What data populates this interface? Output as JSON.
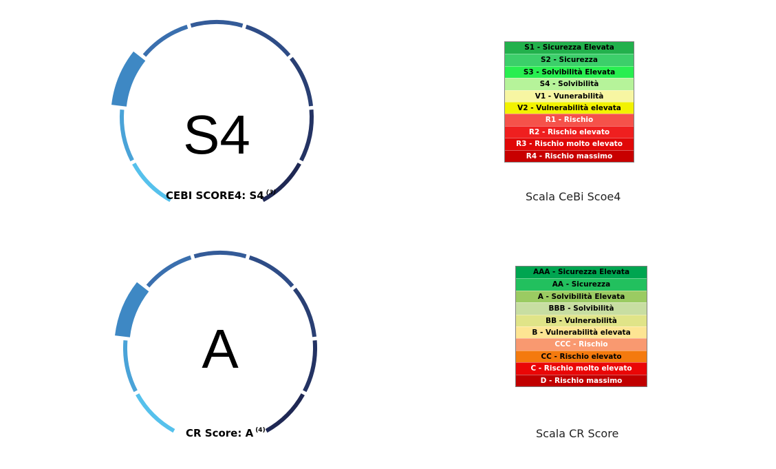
{
  "cebi": {
    "letter": "S4",
    "caption_text": "CEBI SCORE4: S4",
    "caption_note": "(3)",
    "active_segment": 2
  },
  "cr": {
    "letter": "A",
    "caption_text": "CR Score: A",
    "caption_note": "(4)",
    "active_segment": 2
  },
  "cebi_scale": {
    "title": "Scala CeBi Scoe4",
    "rows": [
      {
        "label": "S1 - Sicurezza Elevata",
        "bg": "#22b14c",
        "fg": "#000000"
      },
      {
        "label": "S2 - Sicurezza",
        "bg": "#3ccf6a",
        "fg": "#000000"
      },
      {
        "label": "S3 - Solvibilità Elevata",
        "bg": "#28ee50",
        "fg": "#000000"
      },
      {
        "label": "S4 - Solvibilità",
        "bg": "#b6f39a",
        "fg": "#000000"
      },
      {
        "label": "V1 - Vunerabilità",
        "bg": "#f7f6a2",
        "fg": "#000000"
      },
      {
        "label": "V2 - Vulnerabilità elevata",
        "bg": "#f2f200",
        "fg": "#000000"
      },
      {
        "label": "R1 - Rischio",
        "bg": "#f5524a",
        "fg": "#ffffff"
      },
      {
        "label": "R2 - Rischio elevato",
        "bg": "#ef1f1f",
        "fg": "#ffffff"
      },
      {
        "label": "R3 - Rischio molto elevato",
        "bg": "#e00808",
        "fg": "#ffffff"
      },
      {
        "label": "R4 - Rischio massimo",
        "bg": "#c80000",
        "fg": "#ffffff"
      }
    ]
  },
  "cr_scale": {
    "title": "Scala CR Score",
    "rows": [
      {
        "label": "AAA - Sicurezza Elevata",
        "bg": "#00a550",
        "fg": "#000000"
      },
      {
        "label": "AA - Sicurezza",
        "bg": "#22c05e",
        "fg": "#000000"
      },
      {
        "label": "A - Solvibilità Elevata",
        "bg": "#9bcb62",
        "fg": "#000000"
      },
      {
        "label": "BBB - Solvibilità",
        "bg": "#c8dea2",
        "fg": "#000000"
      },
      {
        "label": "BB - Vulnerabilità",
        "bg": "#e0e488",
        "fg": "#000000"
      },
      {
        "label": "B - Vulnerabilità elevata",
        "bg": "#fde593",
        "fg": "#000000"
      },
      {
        "label": "CCC - Rischio",
        "bg": "#f99970",
        "fg": "#ffffff"
      },
      {
        "label": "CC - Rischio elevato",
        "bg": "#f47a0e",
        "fg": "#000000"
      },
      {
        "label": "C - Rischio molto elevato",
        "bg": "#ea0606",
        "fg": "#ffffff"
      },
      {
        "label": "D - Rischio massimo",
        "bg": "#c00000",
        "fg": "#ffffff"
      }
    ]
  },
  "gauge_colors": [
    "#56c1ec",
    "#4aa3d8",
    "#3e88c4",
    "#3a6fae",
    "#345b98",
    "#2e4c86",
    "#293f73",
    "#243363",
    "#1f2854"
  ]
}
